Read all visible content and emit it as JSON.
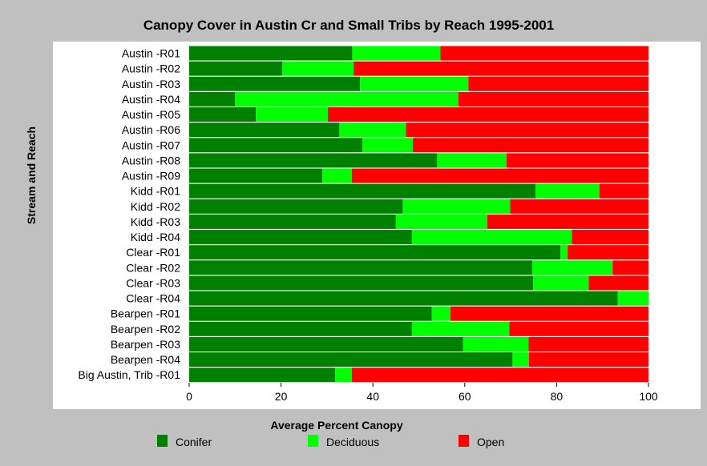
{
  "chart_data": {
    "type": "bar",
    "orientation": "horizontal",
    "stacked": true,
    "title": "Canopy Cover in Austin Cr and Small Tribs by Reach 1995-2001",
    "xlabel": "Average Percent Canopy",
    "ylabel": "Stream and Reach",
    "xlim": [
      0,
      100
    ],
    "xticks": [
      "0",
      "20",
      "40",
      "60",
      "80",
      "100"
    ],
    "grid": false,
    "legend_position": "bottom",
    "categories": [
      "Austin -R01",
      "Austin -R02",
      "Austin -R03",
      "Austin -R04",
      "Austin -R05",
      "Austin -R06",
      "Austin -R07",
      "Austin -R08",
      "Austin -R09",
      "Kidd -R01",
      "Kidd -R02",
      "Kidd -R03",
      "Kidd -R04",
      "Clear -R01",
      "Clear -R02",
      "Clear -R03",
      "Clear -R04",
      "Bearpen -R01",
      "Bearpen -R02",
      "Bearpen -R03",
      "Bearpen -R04",
      "Big Austin, Trib -R01"
    ],
    "series": [
      {
        "name": "Conifer",
        "color": "#008000",
        "values": [
          35.5,
          20.3,
          37.2,
          10.0,
          14.5,
          32.7,
          37.7,
          54.0,
          29.0,
          75.4,
          46.5,
          45.0,
          48.5,
          80.8,
          74.7,
          74.9,
          93.3,
          52.8,
          48.5,
          59.6,
          70.4,
          31.8
        ]
      },
      {
        "name": "Deciduous",
        "color": "#00ff00",
        "values": [
          19.2,
          15.5,
          23.6,
          48.6,
          15.7,
          14.5,
          11.0,
          15.1,
          6.4,
          13.9,
          23.4,
          19.9,
          34.8,
          1.6,
          17.5,
          12.1,
          6.7,
          4.1,
          21.2,
          14.3,
          3.6,
          3.6
        ]
      },
      {
        "name": "Open",
        "color": "#ff0000",
        "values": [
          45.3,
          64.2,
          39.2,
          41.4,
          69.8,
          52.8,
          51.3,
          30.9,
          64.6,
          10.7,
          30.1,
          35.1,
          16.7,
          17.6,
          7.8,
          13.0,
          0.0,
          43.1,
          30.3,
          26.1,
          26.0,
          64.6
        ]
      }
    ]
  }
}
